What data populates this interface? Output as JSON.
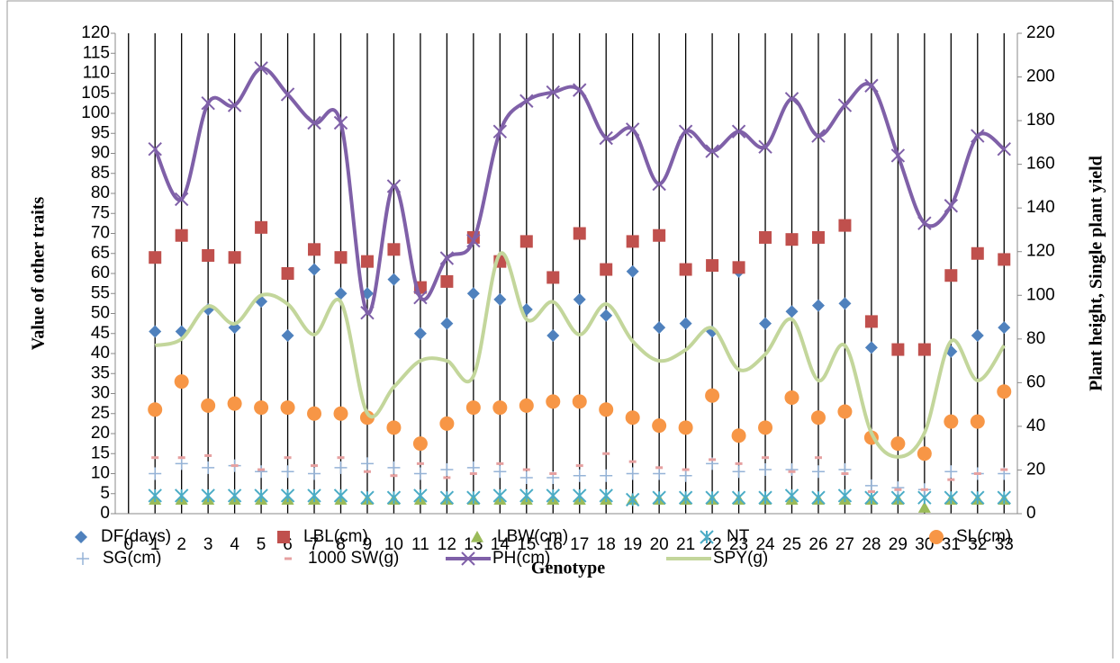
{
  "chart_data": {
    "type": "line",
    "x_label": "Genotype",
    "y_label": "Value of other traits",
    "y2_label": "Plant height, Single plant yield",
    "x": [
      1,
      2,
      3,
      4,
      5,
      6,
      7,
      8,
      9,
      10,
      11,
      12,
      13,
      14,
      15,
      16,
      17,
      18,
      19,
      20,
      21,
      22,
      23,
      24,
      25,
      26,
      27,
      28,
      29,
      30,
      31,
      32,
      33
    ],
    "xlim": [
      -0.5,
      33.5
    ],
    "xticks": [
      0,
      1,
      2,
      3,
      4,
      5,
      6,
      7,
      8,
      9,
      10,
      11,
      12,
      13,
      14,
      15,
      16,
      17,
      18,
      19,
      20,
      21,
      22,
      23,
      24,
      25,
      26,
      27,
      28,
      29,
      30,
      31,
      32,
      33
    ],
    "ylim": [
      0,
      120
    ],
    "yticks": [
      0,
      5,
      10,
      15,
      20,
      25,
      30,
      35,
      40,
      45,
      50,
      55,
      60,
      65,
      70,
      75,
      80,
      85,
      90,
      95,
      100,
      105,
      110,
      115,
      120
    ],
    "y2lim": [
      0,
      220
    ],
    "y2ticks": [
      0,
      20,
      40,
      60,
      80,
      100,
      120,
      140,
      160,
      180,
      200,
      220
    ],
    "x_grid": true,
    "series": [
      {
        "name": "DF(days)",
        "color": "#4f81bd",
        "marker": "diamond",
        "values": [
          45.5,
          45.5,
          51,
          46.5,
          53,
          44.5,
          61,
          55,
          55,
          58.5,
          45,
          47.5,
          55,
          53.5,
          51,
          44.5,
          53.5,
          49.5,
          60.5,
          46.5,
          47.5,
          45.5,
          60.5,
          47.5,
          50.5,
          52,
          52.5,
          41.5,
          41,
          41,
          40.5,
          44.5,
          46.5
        ]
      },
      {
        "name": "LBL(cm)",
        "color": "#c0504d",
        "marker": "square",
        "values": [
          64,
          69.5,
          64.5,
          64,
          71.5,
          60,
          66,
          64,
          63,
          66,
          56.5,
          58,
          69,
          63,
          68,
          59,
          70,
          61,
          68,
          69.5,
          61,
          62,
          61.5,
          69,
          68.5,
          69,
          72,
          48,
          41,
          41,
          59.5,
          65,
          63.5
        ]
      },
      {
        "name": "LBW(cm)",
        "color": "#9bbb59",
        "marker": "triangle",
        "values": [
          3.5,
          3.5,
          3.5,
          3.5,
          3.5,
          3.5,
          3.5,
          3.5,
          3.5,
          3.5,
          3.5,
          3.5,
          3.5,
          3.5,
          3.5,
          3.5,
          3.5,
          3.5,
          3.5,
          3.5,
          3.5,
          3.5,
          3.5,
          3.5,
          3.5,
          3.5,
          3.5,
          3.5,
          3.5,
          1.5,
          3.5,
          3.5,
          3.5
        ]
      },
      {
        "name": "NT",
        "color": "#4bacc6",
        "marker": "star",
        "values": [
          4.5,
          4.5,
          4.5,
          4.5,
          4.5,
          4.5,
          4.5,
          4.5,
          4,
          4,
          4.5,
          4,
          4,
          4.5,
          4.5,
          4.5,
          4.5,
          4.5,
          3.5,
          4,
          4,
          4,
          4,
          4,
          4.5,
          4,
          4.5,
          4,
          4,
          4,
          4,
          4,
          4
        ]
      },
      {
        "name": "SL(cm)",
        "color": "#f79646",
        "marker": "circle",
        "values": [
          26,
          33,
          27,
          27.5,
          26.5,
          26.5,
          25,
          25,
          24,
          21.5,
          17.5,
          22.5,
          26.5,
          26.5,
          27,
          28,
          28,
          26,
          24,
          22,
          21.5,
          29.5,
          19.5,
          21.5,
          29,
          24,
          25.5,
          19,
          17.5,
          15,
          23,
          23,
          30.5
        ]
      },
      {
        "name": "SG(cm)",
        "color": "#95b3d7",
        "marker": "plus",
        "values": [
          10,
          12.5,
          11.5,
          12,
          10.5,
          10.5,
          10,
          11.5,
          12.5,
          11.5,
          10,
          11,
          11.5,
          10.5,
          9,
          9,
          9.5,
          9.5,
          10,
          10,
          9.5,
          12.5,
          10.5,
          11,
          11,
          10.5,
          11,
          7,
          6.5,
          6,
          10.5,
          10,
          10
        ]
      },
      {
        "name": "1000 SW(g)",
        "color": "#e6a0a0",
        "marker": "dash",
        "values": [
          14,
          14,
          14.5,
          12,
          11,
          14,
          12,
          14,
          10.5,
          9.5,
          12.5,
          9,
          10,
          12.5,
          11,
          10,
          12,
          15,
          13,
          11.5,
          11,
          13.5,
          12.5,
          14,
          10.5,
          14,
          10,
          5.5,
          6,
          6,
          8.5,
          10,
          11
        ]
      },
      {
        "name": "PH(cm)",
        "color": "#7f60a8",
        "marker": "x",
        "line": true,
        "axis": "y2",
        "values": [
          167,
          144,
          188,
          187,
          204,
          192,
          179,
          179,
          92,
          150,
          99,
          117,
          125,
          175,
          189,
          193,
          194,
          172,
          176,
          151,
          175,
          166,
          175,
          168,
          190,
          173,
          187,
          196,
          164,
          133,
          141,
          173,
          167
        ]
      },
      {
        "name": "SPY(g)",
        "color": "#c3d69b",
        "marker": "none",
        "line": true,
        "axis": "y2",
        "values": [
          77,
          80,
          95,
          87,
          100,
          96,
          82,
          97,
          46,
          58,
          70,
          70,
          63,
          119,
          89,
          97,
          82,
          96,
          79,
          70,
          75,
          85,
          66,
          73,
          89,
          61,
          77,
          37,
          26,
          37,
          79,
          61,
          77
        ]
      }
    ]
  }
}
